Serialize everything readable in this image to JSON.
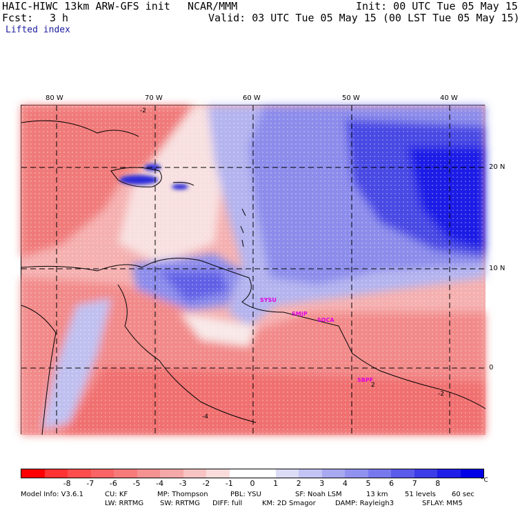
{
  "header": {
    "title": "HAIC-HIWC 13km ARW-GFS init",
    "org": "NCAR/MMM",
    "init": "Init: 00 UTC Tue 05 May 15",
    "fcst_label": "Fcst:",
    "fcst_value": "3 h",
    "valid": "Valid: 03 UTC Tue 05 May 15 (00 LST Tue 05 May 15)",
    "field": "Lifted index"
  },
  "map": {
    "lon_labels": [
      "80 W",
      "70 W",
      "60 W",
      "50 W",
      "40 W"
    ],
    "lat_labels": [
      "20 N",
      "10 N",
      "0"
    ],
    "contour_labels": [
      "-2",
      "-4",
      "-2",
      "2"
    ],
    "stations": [
      "SYSU",
      "SMJP",
      "SOCA",
      "SBPF"
    ]
  },
  "colorbar": {
    "colors": [
      "#ff0000",
      "#ff3333",
      "#ff4d4d",
      "#fa6464",
      "#f77a7a",
      "#f59191",
      "#f5a8a8",
      "#f7c3c3",
      "#fadcdc",
      "#ffffff",
      "#ffffff",
      "#dcdcf7",
      "#c3c3f5",
      "#a8a8f0",
      "#9191f0",
      "#7878ee",
      "#5a5aeb",
      "#3c3ce8",
      "#1e1ee8",
      "#0000e6"
    ],
    "ticks": [
      "-8",
      "-7",
      "-6",
      "-5",
      "-4",
      "-3",
      "-2",
      "-1",
      "0",
      "1",
      "2",
      "3",
      "4",
      "5",
      "6",
      "7",
      "8"
    ],
    "unit": "°C"
  },
  "footer": {
    "line1": [
      "Model Info: V3.6.1",
      "CU: KF",
      "MP: Thompson",
      "PBL: YSU",
      "SF: Noah LSM",
      "13 km",
      "51 levels",
      "60 sec"
    ],
    "line2": [
      "LW: RRTMG",
      "SW: RRTMG",
      "DIFF: full",
      "KM: 2D Smagor",
      "DAMP: Rayleigh3",
      "SFLAY: MM5"
    ]
  }
}
